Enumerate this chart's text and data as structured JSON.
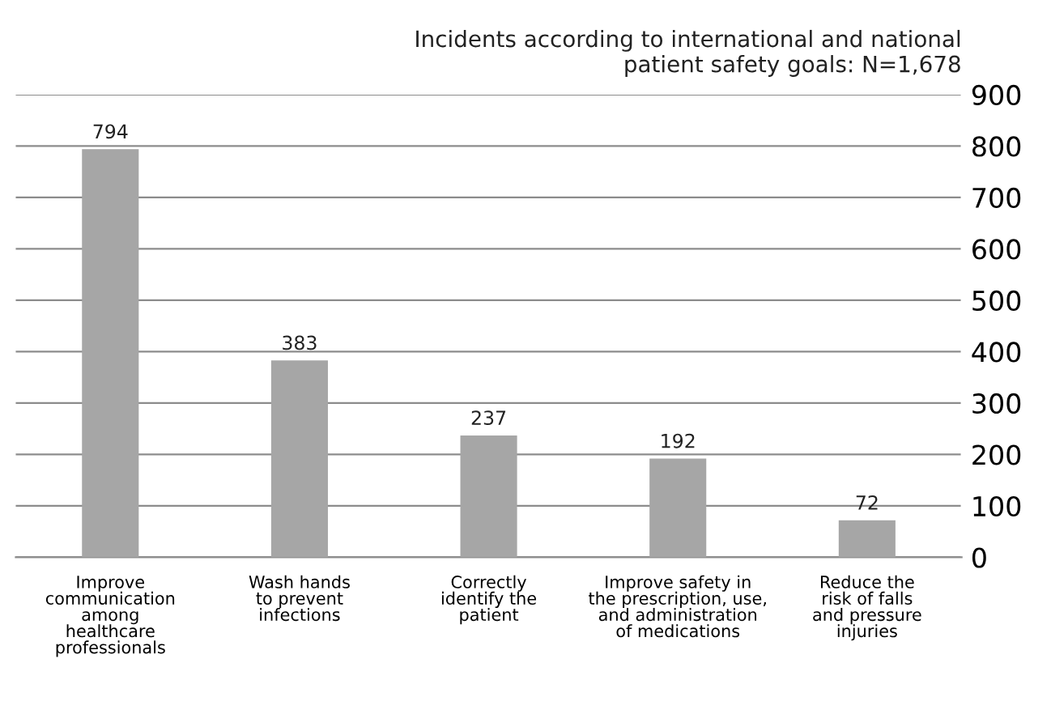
{
  "chart_data": {
    "type": "bar",
    "title": "Incidents according to international and national\npatient safety goals: N=1,678",
    "categories": [
      "Improve\ncommunication\namong\nhealthcare\nprofessionals",
      "Wash hands\nto prevent\ninfections",
      "Correctly\nidentify the\npatient",
      "Improve safety in\nthe prescription, use,\nand administration\nof medications",
      "Reduce the\nrisk of falls\nand pressure\ninjuries"
    ],
    "values": [
      794,
      383,
      237,
      192,
      72
    ],
    "color": "#a6a6a6",
    "ylim": [
      0,
      900
    ],
    "yticks": [
      0,
      100,
      200,
      300,
      400,
      500,
      600,
      700,
      800,
      900
    ],
    "grid": "y",
    "data_labels": true
  }
}
